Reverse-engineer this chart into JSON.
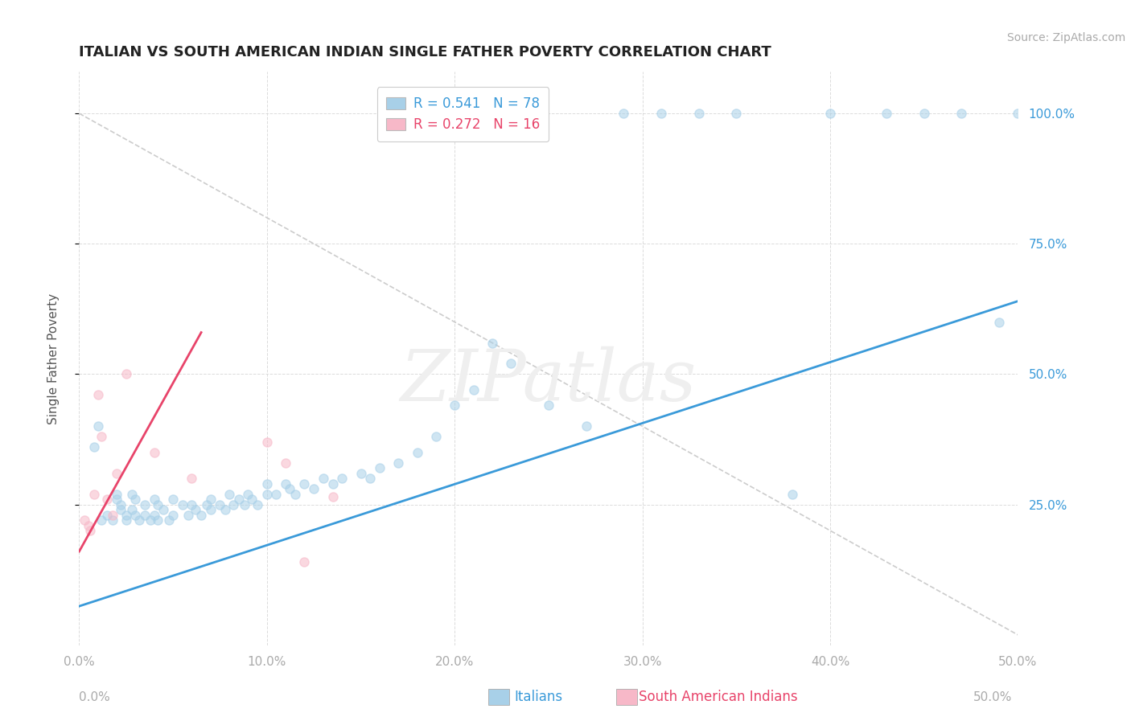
{
  "title": "ITALIAN VS SOUTH AMERICAN INDIAN SINGLE FATHER POVERTY CORRELATION CHART",
  "source": "Source: ZipAtlas.com",
  "ylabel": "Single Father Poverty",
  "xlim": [
    0.0,
    0.5
  ],
  "ylim": [
    -0.02,
    1.08
  ],
  "xtick_vals": [
    0.0,
    0.1,
    0.2,
    0.3,
    0.4,
    0.5
  ],
  "xtick_labels": [
    "0.0%",
    "10.0%",
    "20.0%",
    "30.0%",
    "40.0%",
    "50.0%"
  ],
  "ytick_vals": [
    0.25,
    0.5,
    0.75,
    1.0
  ],
  "ytick_labels_right": [
    "25.0%",
    "50.0%",
    "75.0%",
    "100.0%"
  ],
  "legend_r1": "R = 0.541",
  "legend_n1": "N = 78",
  "legend_r2": "R = 0.272",
  "legend_n2": "N = 16",
  "watermark": "ZIPatlas",
  "blue_color": "#a8d0e8",
  "pink_color": "#f7b8c8",
  "line_blue": "#3a9ad9",
  "line_pink": "#e8446a",
  "blue_scatter_x": [
    0.008,
    0.01,
    0.012,
    0.015,
    0.018,
    0.02,
    0.02,
    0.022,
    0.022,
    0.025,
    0.025,
    0.028,
    0.028,
    0.03,
    0.03,
    0.032,
    0.035,
    0.035,
    0.038,
    0.04,
    0.04,
    0.042,
    0.042,
    0.045,
    0.048,
    0.05,
    0.05,
    0.055,
    0.058,
    0.06,
    0.062,
    0.065,
    0.068,
    0.07,
    0.07,
    0.075,
    0.078,
    0.08,
    0.082,
    0.085,
    0.088,
    0.09,
    0.092,
    0.095,
    0.1,
    0.1,
    0.105,
    0.11,
    0.112,
    0.115,
    0.12,
    0.125,
    0.13,
    0.135,
    0.14,
    0.15,
    0.155,
    0.16,
    0.17,
    0.18,
    0.19,
    0.2,
    0.21,
    0.22,
    0.23,
    0.25,
    0.27,
    0.29,
    0.31,
    0.33,
    0.35,
    0.38,
    0.4,
    0.43,
    0.45,
    0.47,
    0.49,
    0.5
  ],
  "blue_scatter_y": [
    0.36,
    0.4,
    0.22,
    0.23,
    0.22,
    0.27,
    0.26,
    0.25,
    0.24,
    0.23,
    0.22,
    0.27,
    0.24,
    0.26,
    0.23,
    0.22,
    0.25,
    0.23,
    0.22,
    0.26,
    0.23,
    0.25,
    0.22,
    0.24,
    0.22,
    0.26,
    0.23,
    0.25,
    0.23,
    0.25,
    0.24,
    0.23,
    0.25,
    0.26,
    0.24,
    0.25,
    0.24,
    0.27,
    0.25,
    0.26,
    0.25,
    0.27,
    0.26,
    0.25,
    0.29,
    0.27,
    0.27,
    0.29,
    0.28,
    0.27,
    0.29,
    0.28,
    0.3,
    0.29,
    0.3,
    0.31,
    0.3,
    0.32,
    0.33,
    0.35,
    0.38,
    0.44,
    0.47,
    0.56,
    0.52,
    0.44,
    0.4,
    1.0,
    1.0,
    1.0,
    1.0,
    0.27,
    1.0,
    1.0,
    1.0,
    1.0,
    0.6,
    1.0
  ],
  "pink_scatter_x": [
    0.003,
    0.005,
    0.006,
    0.008,
    0.01,
    0.012,
    0.015,
    0.018,
    0.02,
    0.025,
    0.04,
    0.06,
    0.1,
    0.11,
    0.12,
    0.135
  ],
  "pink_scatter_y": [
    0.22,
    0.21,
    0.2,
    0.27,
    0.46,
    0.38,
    0.26,
    0.23,
    0.31,
    0.5,
    0.35,
    0.3,
    0.37,
    0.33,
    0.14,
    0.265
  ],
  "blue_line_x": [
    0.0,
    0.5
  ],
  "blue_line_y": [
    0.055,
    0.64
  ],
  "pink_line_x": [
    0.0,
    0.065
  ],
  "pink_line_y": [
    0.16,
    0.58
  ],
  "diag_line_x": [
    0.0,
    0.5
  ],
  "diag_line_y": [
    1.0,
    0.0
  ],
  "grid_color": "#d8d8d8",
  "title_color": "#222222",
  "source_color": "#aaaaaa",
  "ylabel_color": "#555555",
  "right_tick_color": "#3a9ad9",
  "left_tick_color": "#aaaaaa",
  "bottom_label_italic_color": "#aaaaaa"
}
